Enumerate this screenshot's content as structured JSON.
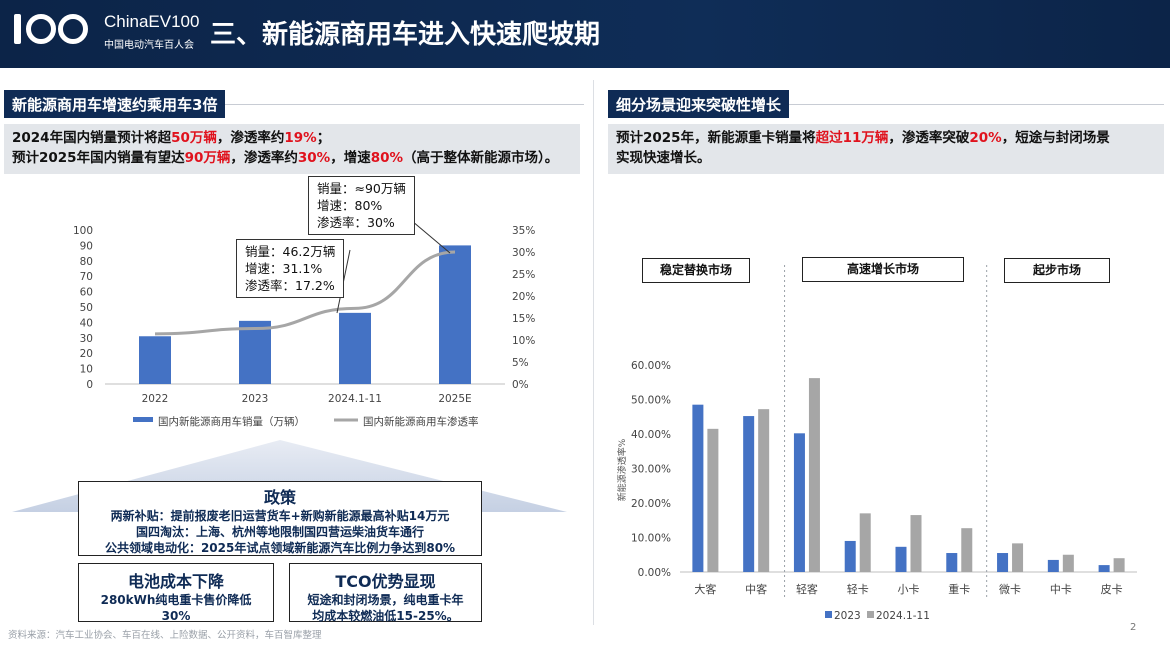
{
  "header": {
    "logo_main": "ChinaEV100",
    "logo_sub": "中国电动汽车百人会",
    "title": "三、新能源商用车进入快速爬坡期"
  },
  "left": {
    "section_title": "新能源商用车增速约乘用车3倍",
    "summary_line1_a": "2024年国内销量预计将超",
    "summary_line1_b": "50万辆",
    "summary_line1_c": "，渗透率约",
    "summary_line1_d": "19%",
    "summary_line1_e": "；",
    "summary_line2_a": "预计2025年国内销量有望达",
    "summary_line2_b": "90万辆",
    "summary_line2_c": "，渗透率约",
    "summary_line2_d": "30%",
    "summary_line2_e": "，增速",
    "summary_line2_f": "80%",
    "summary_line2_g": "（高于整体新能源市场）。",
    "callout_2025": [
      "销量：≈90万辆",
      "增速：80%",
      "渗透率：30%"
    ],
    "callout_2024": [
      "销量：46.2万辆",
      "增速：31.1%",
      "渗透率：17.2%"
    ],
    "policy": {
      "title": "政策",
      "lines": [
        "两新补贴：提前报废老旧运营货车+新购新能源最高补贴14万元",
        "国四淘汰：上海、杭州等地限制国四营运柴油货车通行",
        "公共领域电动化：2025年试点领域新能源汽车比例力争达到80%"
      ]
    },
    "battery": {
      "title": "电池成本下降",
      "lines": [
        "280kWh纯电重卡售价降低",
        "30%"
      ]
    },
    "tco": {
      "title": "TCO优势显现",
      "lines": [
        "短途和封闭场景，纯电重卡年",
        "均成本较燃油低15-25%。"
      ]
    }
  },
  "right": {
    "section_title": "细分场景迎来突破性增长",
    "summary_a": "预计2025年，新能源重卡销量将",
    "summary_b": "超过11万辆",
    "summary_c": "，渗透率突破",
    "summary_d": "20%",
    "summary_e": "，短途与封闭场景",
    "summary_f": "实现快速增长。",
    "groups": [
      "稳定替换市场",
      "高速增长市场",
      "起步市场"
    ]
  },
  "footer": {
    "source": "资料来源：汽车工业协会、车百在线、上险数据、公开资料，车百智库整理",
    "page": "2"
  },
  "colors": {
    "navy": "#0f2b55",
    "bar_blue": "#4472c4",
    "bar_gray": "#a6a6a6",
    "red": "#e0121d"
  },
  "chart_data": [
    {
      "type": "bar+line",
      "categories": [
        "2022",
        "2023",
        "2024.1-11",
        "2025E"
      ],
      "series": [
        {
          "name": "国内新能源商用车销量（万辆）",
          "type": "bar",
          "axis": "left",
          "values": [
            31,
            41,
            46.2,
            90
          ]
        },
        {
          "name": "国内新能源商用车渗透率",
          "type": "line",
          "axis": "right",
          "values": [
            0.114,
            0.126,
            0.172,
            0.3
          ]
        }
      ],
      "y_left": {
        "ticks": [
          0,
          10,
          20,
          30,
          40,
          50,
          60,
          70,
          80,
          90,
          100
        ],
        "lim": [
          0,
          100
        ]
      },
      "y_right": {
        "ticks": [
          "0%",
          "5%",
          "10%",
          "15%",
          "20%",
          "25%",
          "30%",
          "35%"
        ],
        "lim": [
          0,
          0.35
        ]
      },
      "legend": "bottom"
    },
    {
      "type": "bar",
      "categories": [
        "大客",
        "中客",
        "轻客",
        "轻卡",
        "小卡",
        "重卡",
        "微卡",
        "中卡",
        "皮卡"
      ],
      "series": [
        {
          "name": "2023",
          "values": [
            0.485,
            0.452,
            0.402,
            0.09,
            0.073,
            0.055,
            0.055,
            0.035,
            0.02
          ]
        },
        {
          "name": "2024.1-11",
          "values": [
            0.415,
            0.472,
            0.562,
            0.17,
            0.165,
            0.127,
            0.083,
            0.05,
            0.04
          ]
        }
      ],
      "ylabel": "新能源渗透率%",
      "y_ticks": [
        "0.00%",
        "10.00%",
        "20.00%",
        "30.00%",
        "40.00%",
        "50.00%",
        "60.00%"
      ],
      "ylim": [
        0,
        0.6
      ],
      "legend": "bottom"
    }
  ]
}
